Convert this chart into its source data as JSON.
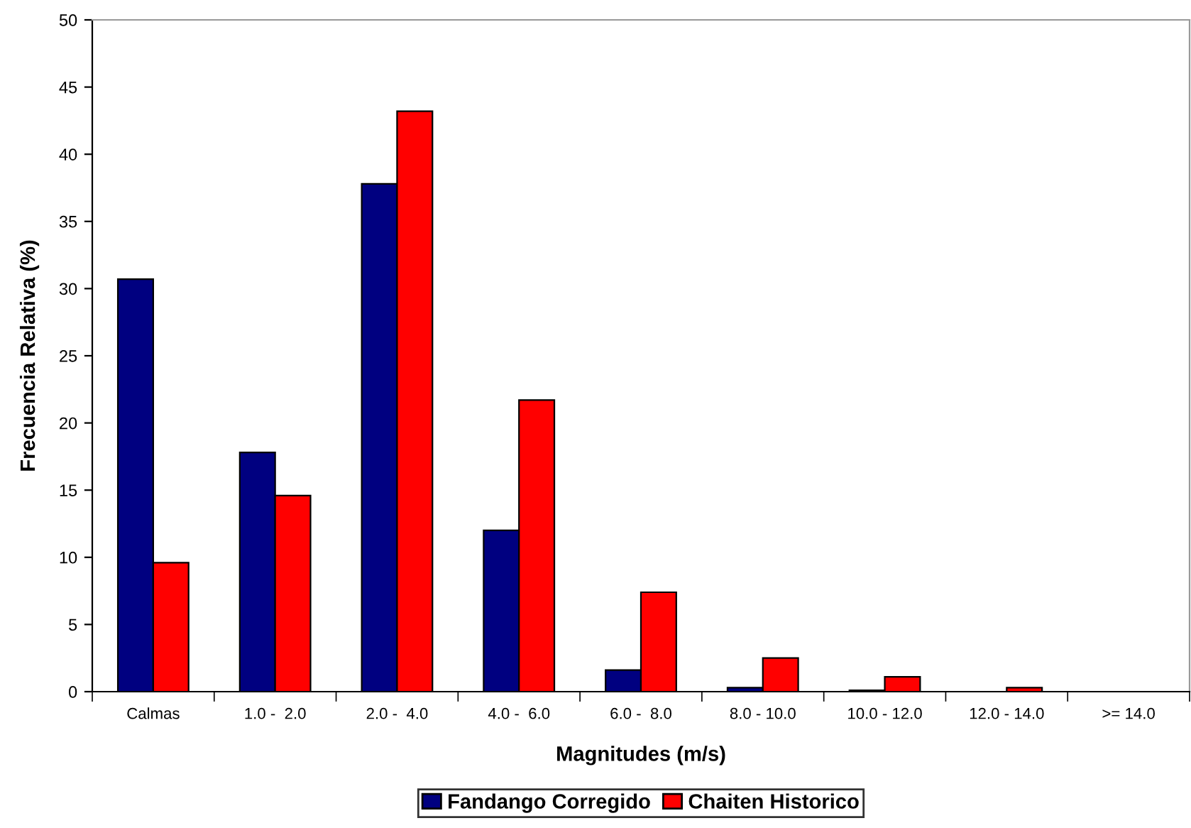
{
  "chart_data": {
    "type": "bar",
    "xlabel": "Magnitudes (m/s)",
    "ylabel": "Frecuencia Relativa (%)",
    "categories": [
      "Calmas",
      "1.0 -  2.0",
      "2.0 -  4.0",
      "4.0 -  6.0",
      "6.0 -  8.0",
      "8.0 - 10.0",
      "10.0 - 12.0",
      "12.0 - 14.0",
      ">= 14.0"
    ],
    "series": [
      {
        "name": "Fandango Corregido",
        "color": "#000080",
        "values": [
          30.7,
          17.8,
          37.8,
          12.0,
          1.6,
          0.3,
          0.1,
          null,
          null
        ]
      },
      {
        "name": "Chaiten Historico",
        "color": "#ff0000",
        "values": [
          9.6,
          14.6,
          43.2,
          21.7,
          7.4,
          2.5,
          1.1,
          0.3,
          null
        ]
      }
    ],
    "ylim": [
      0,
      50
    ],
    "yticks": [
      0,
      5,
      10,
      15,
      20,
      25,
      30,
      35,
      40,
      45,
      50
    ],
    "grid": false,
    "legend": "bottom"
  }
}
